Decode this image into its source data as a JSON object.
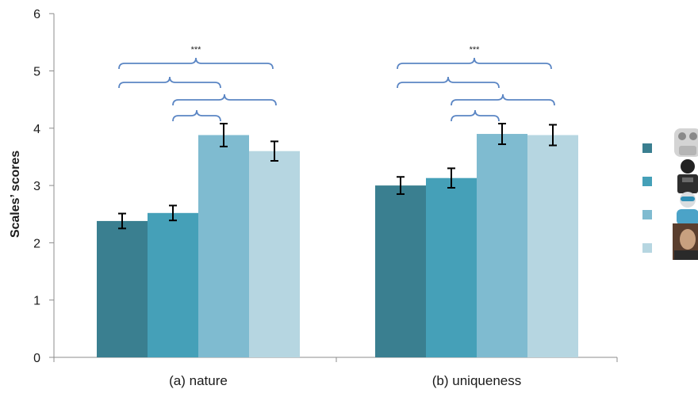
{
  "chart_data": {
    "type": "bar",
    "title": "",
    "xlabel": "",
    "ylabel": "Scales’ scores",
    "ylim": [
      0,
      6
    ],
    "yticks": [
      0,
      1,
      2,
      3,
      4,
      5,
      6
    ],
    "categories": [
      "(a) nature",
      "(b) uniqueness"
    ],
    "series": [
      {
        "values": [
          2.38,
          3.0
        ],
        "errors": [
          0.13,
          0.15
        ],
        "color": "#3a7f90",
        "legend_icon": "robot-small-white-icon"
      },
      {
        "values": [
          2.52,
          3.13
        ],
        "errors": [
          0.13,
          0.17
        ],
        "color": "#45a0b8",
        "legend_icon": "robot-black-humanoid-icon"
      },
      {
        "values": [
          3.88,
          3.9
        ],
        "errors": [
          0.2,
          0.18
        ],
        "color": "#7fbbd0",
        "legend_icon": "android-blue-icon"
      },
      {
        "values": [
          3.6,
          3.88
        ],
        "errors": [
          0.17,
          0.18
        ],
        "color": "#b6d6e1",
        "legend_icon": "human-face-icon"
      }
    ],
    "significance_label": "***",
    "grid": false,
    "legend_placement": "right"
  }
}
